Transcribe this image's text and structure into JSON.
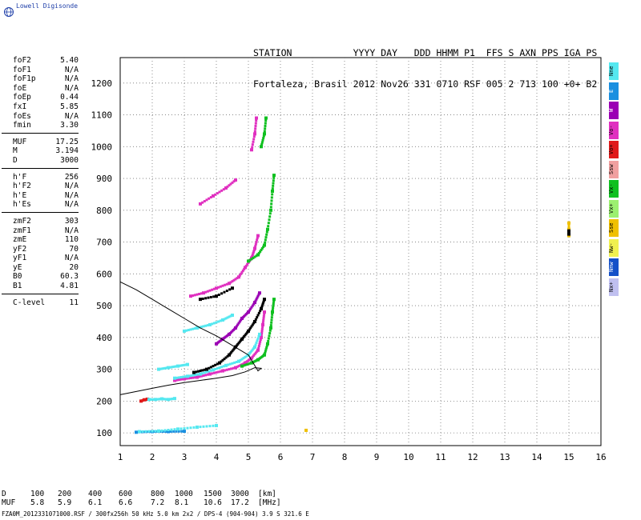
{
  "logo": {
    "text": "Lowell Digisonde"
  },
  "header": {
    "line1": "STATION           YYYY DAY   DDD HHMM P1  FFS S AXN PPS IGA PS",
    "line2": "Fortaleza, Brasil 2012 Nov26 331 0710 RSF 005 2 713 100 +0+ B2"
  },
  "params": [
    {
      "group": [
        {
          "name": "foF2",
          "value": "5.40"
        },
        {
          "name": "foF1",
          "value": "N/A"
        },
        {
          "name": "foF1p",
          "value": "N/A"
        },
        {
          "name": "foE",
          "value": "N/A"
        },
        {
          "name": "foEp",
          "value": "0.44"
        },
        {
          "name": "fxI",
          "value": "5.85"
        },
        {
          "name": "foEs",
          "value": "N/A"
        },
        {
          "name": "fmin",
          "value": "3.30"
        }
      ]
    },
    {
      "group": [
        {
          "name": "MUF",
          "value": "17.25"
        },
        {
          "name": "M",
          "value": "3.194"
        },
        {
          "name": "D",
          "value": "3000"
        }
      ]
    },
    {
      "group": [
        {
          "name": "h'F",
          "value": "256"
        },
        {
          "name": "h'F2",
          "value": "N/A"
        },
        {
          "name": "h'E",
          "value": "N/A"
        },
        {
          "name": "h'Es",
          "value": "N/A"
        }
      ]
    },
    {
      "group": [
        {
          "name": "zmF2",
          "value": "303"
        },
        {
          "name": "zmF1",
          "value": "N/A"
        },
        {
          "name": "zmE",
          "value": "110"
        },
        {
          "name": "yF2",
          "value": "70"
        },
        {
          "name": "yF1",
          "value": "N/A"
        },
        {
          "name": "yE",
          "value": "20"
        },
        {
          "name": "B0",
          "value": "60.3"
        },
        {
          "name": "B1",
          "value": "4.81"
        }
      ]
    },
    {
      "group": [
        {
          "name": "C-level",
          "value": "11"
        }
      ]
    }
  ],
  "modes": [
    {
      "label": "Nne",
      "color": "#55e8f0"
    },
    {
      "label": "E",
      "color": "#1a8fe0"
    },
    {
      "label": "W",
      "color": "#9b00b4"
    },
    {
      "label": "Vo-",
      "color": "#e030c0"
    },
    {
      "label": "Vo+",
      "color": "#e01a1a"
    },
    {
      "label": "Ssw",
      "color": "#f0a0a0"
    },
    {
      "label": "Vx-",
      "color": "#10c020"
    },
    {
      "label": "Vx+",
      "color": "#9cf070"
    },
    {
      "label": "Sse",
      "color": "#f0c000"
    },
    {
      "label": "Nw-",
      "color": "#f0f050"
    },
    {
      "label": "Nnw",
      "color": "#1450c8"
    },
    {
      "label": "Nx+",
      "color": "#c0c0f0"
    }
  ],
  "chart_data": {
    "type": "scatter",
    "title": "",
    "xlabel": "",
    "ylabel": "",
    "xlim": [
      1,
      16
    ],
    "ylim": [
      60,
      1280
    ],
    "x_ticks": [
      1,
      2,
      3,
      4,
      5,
      6,
      7,
      8,
      9,
      10,
      11,
      12,
      13,
      14,
      15,
      16
    ],
    "y_ticks": [
      100,
      200,
      300,
      400,
      500,
      600,
      700,
      800,
      900,
      1000,
      1100,
      1200
    ],
    "grid": "dotted",
    "traces": [
      {
        "color": "#e030c0",
        "points": [
          [
            2.7,
            265
          ],
          [
            3.0,
            270
          ],
          [
            3.4,
            275
          ],
          [
            3.8,
            285
          ],
          [
            4.2,
            295
          ],
          [
            4.6,
            305
          ],
          [
            4.9,
            320
          ],
          [
            5.1,
            335
          ],
          [
            5.3,
            360
          ],
          [
            5.4,
            400
          ],
          [
            5.45,
            440
          ],
          [
            5.5,
            480
          ]
        ]
      },
      {
        "color": "#55e8f0",
        "points": [
          [
            2.7,
            272
          ],
          [
            3.1,
            278
          ],
          [
            3.5,
            285
          ],
          [
            3.9,
            298
          ],
          [
            4.3,
            312
          ],
          [
            4.7,
            325
          ],
          [
            5.0,
            345
          ],
          [
            5.2,
            370
          ],
          [
            5.35,
            410
          ]
        ]
      },
      {
        "color": "#000000",
        "points": [
          [
            3.3,
            290
          ],
          [
            3.7,
            300
          ],
          [
            4.1,
            320
          ],
          [
            4.4,
            345
          ],
          [
            4.6,
            370
          ],
          [
            4.8,
            395
          ],
          [
            5.0,
            420
          ],
          [
            5.2,
            450
          ],
          [
            5.4,
            490
          ],
          [
            5.5,
            520
          ]
        ]
      },
      {
        "color": "#10c020",
        "points": [
          [
            4.8,
            310
          ],
          [
            5.1,
            320
          ],
          [
            5.3,
            330
          ],
          [
            5.5,
            345
          ],
          [
            5.6,
            380
          ],
          [
            5.7,
            430
          ],
          [
            5.75,
            480
          ],
          [
            5.8,
            520
          ]
        ]
      },
      {
        "color": "#9b00b4",
        "points": [
          [
            4.0,
            380
          ],
          [
            4.2,
            395
          ],
          [
            4.4,
            410
          ],
          [
            4.6,
            430
          ],
          [
            4.8,
            460
          ],
          [
            5.0,
            480
          ],
          [
            5.2,
            510
          ],
          [
            5.35,
            540
          ]
        ]
      },
      {
        "color": "#e030c0",
        "points": [
          [
            3.2,
            530
          ],
          [
            3.6,
            540
          ],
          [
            4.0,
            555
          ],
          [
            4.4,
            570
          ],
          [
            4.7,
            590
          ],
          [
            4.9,
            620
          ],
          [
            5.1,
            650
          ],
          [
            5.2,
            680
          ],
          [
            5.3,
            720
          ]
        ]
      },
      {
        "color": "#10c020",
        "points": [
          [
            5.0,
            640
          ],
          [
            5.3,
            660
          ],
          [
            5.5,
            690
          ],
          [
            5.6,
            740
          ],
          [
            5.7,
            800
          ],
          [
            5.75,
            860
          ],
          [
            5.8,
            910
          ]
        ]
      },
      {
        "color": "#e030c0",
        "points": [
          [
            3.5,
            820
          ],
          [
            3.9,
            845
          ],
          [
            4.3,
            870
          ],
          [
            4.6,
            895
          ]
        ]
      },
      {
        "color": "#e030c0",
        "points": [
          [
            5.1,
            990
          ],
          [
            5.2,
            1040
          ],
          [
            5.25,
            1090
          ]
        ]
      },
      {
        "color": "#10c020",
        "points": [
          [
            5.4,
            1000
          ],
          [
            5.5,
            1040
          ],
          [
            5.55,
            1090
          ]
        ]
      },
      {
        "color": "#1a8fe0",
        "points": [
          [
            1.5,
            102
          ],
          [
            2.0,
            104
          ],
          [
            2.5,
            104
          ],
          [
            3.0,
            105
          ]
        ]
      },
      {
        "color": "#55e8f0",
        "points": [
          [
            1.6,
            104
          ],
          [
            2.2,
            106
          ],
          [
            2.8,
            112
          ],
          [
            3.4,
            118
          ],
          [
            4.0,
            123
          ]
        ]
      },
      {
        "color": "#e01a1a",
        "points": [
          [
            1.65,
            200
          ],
          [
            1.75,
            204
          ],
          [
            1.85,
            206
          ]
        ]
      },
      {
        "color": "#55e8f0",
        "points": [
          [
            1.9,
            205
          ],
          [
            2.1,
            205
          ],
          [
            2.3,
            207
          ],
          [
            2.5,
            205
          ],
          [
            2.7,
            208
          ]
        ]
      },
      {
        "color": "#55e8f0",
        "points": [
          [
            2.2,
            300
          ],
          [
            2.5,
            305
          ],
          [
            2.8,
            310
          ],
          [
            3.1,
            315
          ]
        ]
      },
      {
        "color": "#55e8f0",
        "points": [
          [
            3.0,
            420
          ],
          [
            3.4,
            430
          ],
          [
            3.8,
            440
          ],
          [
            4.2,
            455
          ],
          [
            4.5,
            470
          ]
        ]
      },
      {
        "color": "#000000",
        "points": [
          [
            3.5,
            520
          ],
          [
            4.0,
            530
          ],
          [
            4.5,
            555
          ]
        ]
      },
      {
        "color": "#f0c000",
        "points": [
          [
            15.0,
            720
          ],
          [
            15.0,
            740
          ],
          [
            15.0,
            760
          ]
        ]
      },
      {
        "color": "#000000",
        "points": [
          [
            15.0,
            725
          ],
          [
            15.0,
            735
          ]
        ]
      },
      {
        "color": "#f0c000",
        "points": [
          [
            6.8,
            108
          ]
        ]
      }
    ],
    "profile_curve": [
      [
        1.0,
        220
      ],
      [
        1.5,
        230
      ],
      [
        2.0,
        240
      ],
      [
        2.5,
        250
      ],
      [
        3.0,
        258
      ],
      [
        3.5,
        265
      ],
      [
        4.0,
        272
      ],
      [
        4.5,
        280
      ],
      [
        4.9,
        292
      ],
      [
        5.2,
        305
      ],
      [
        5.4,
        303
      ],
      [
        5.3,
        295
      ],
      [
        5.0,
        345
      ],
      [
        4.5,
        375
      ],
      [
        4.0,
        405
      ],
      [
        3.5,
        430
      ],
      [
        3.0,
        460
      ],
      [
        2.5,
        490
      ],
      [
        2.0,
        520
      ],
      [
        1.5,
        550
      ],
      [
        1.0,
        575
      ]
    ],
    "range_max": 1280
  },
  "bottom_table": {
    "d_label": "D",
    "muf_label": "MUF",
    "d_values": [
      "100",
      "200",
      "400",
      "600",
      "800",
      "1000",
      "1500",
      "3000"
    ],
    "muf_values": [
      "5.8",
      "5.9",
      "6.1",
      "6.6",
      "7.2",
      "8.1",
      "10.6",
      "17.2"
    ],
    "d_unit": "[km]",
    "muf_unit": "[MHz]"
  },
  "footer": "FZA0M_2012331071000.RSF / 300fx256h 50 kHz 5.0 km 2x2 / DPS-4 (904-904)  3.9 S 321.6 E"
}
